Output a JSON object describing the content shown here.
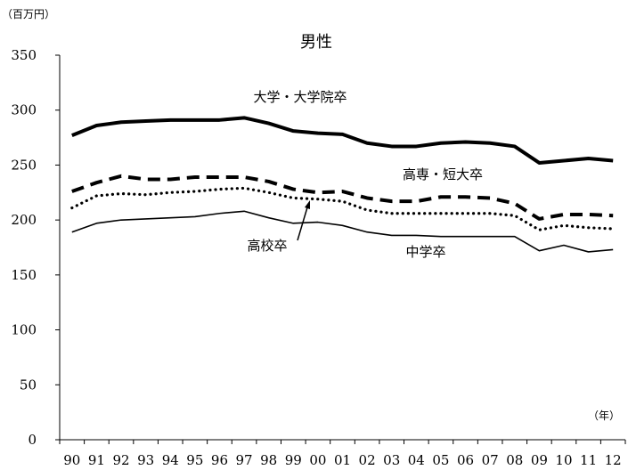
{
  "chart_data": {
    "type": "line",
    "title": "男性",
    "y_unit_label": "（百万円）",
    "x_unit_label": "（年）",
    "categories": [
      "90",
      "91",
      "92",
      "93",
      "94",
      "95",
      "96",
      "97",
      "98",
      "99",
      "00",
      "01",
      "02",
      "03",
      "04",
      "05",
      "06",
      "07",
      "08",
      "09",
      "10",
      "11",
      "12"
    ],
    "yticks": [
      "0",
      "50",
      "100",
      "150",
      "200",
      "250",
      "300",
      "350"
    ],
    "ylim": [
      0,
      350
    ],
    "grid": false,
    "series": [
      {
        "name": "大学・大学院卒",
        "style": "solid-thick",
        "values": [
          277,
          286,
          289,
          290,
          291,
          291,
          291,
          293,
          288,
          281,
          279,
          278,
          270,
          267,
          267,
          270,
          271,
          270,
          267,
          252,
          254,
          256,
          254
        ]
      },
      {
        "name": "高専・短大卒",
        "style": "dashed-thick",
        "values": [
          226,
          234,
          240,
          237,
          237,
          239,
          239,
          239,
          235,
          228,
          225,
          226,
          220,
          217,
          217,
          221,
          221,
          220,
          215,
          201,
          205,
          205,
          204
        ]
      },
      {
        "name": "高校卒",
        "style": "dotted",
        "values": [
          211,
          222,
          224,
          223,
          225,
          226,
          228,
          229,
          225,
          220,
          219,
          217,
          209,
          206,
          206,
          206,
          206,
          206,
          204,
          191,
          195,
          193,
          192
        ]
      },
      {
        "name": "中学卒",
        "style": "solid-thin",
        "values": [
          189,
          197,
          200,
          201,
          202,
          203,
          206,
          208,
          202,
          197,
          198,
          195,
          189,
          186,
          186,
          185,
          185,
          185,
          185,
          172,
          177,
          171,
          173
        ]
      }
    ],
    "labels": {
      "univ": "大学・大学院卒",
      "college": "高専・短大卒",
      "high": "高校卒",
      "junior": "中学卒"
    }
  }
}
